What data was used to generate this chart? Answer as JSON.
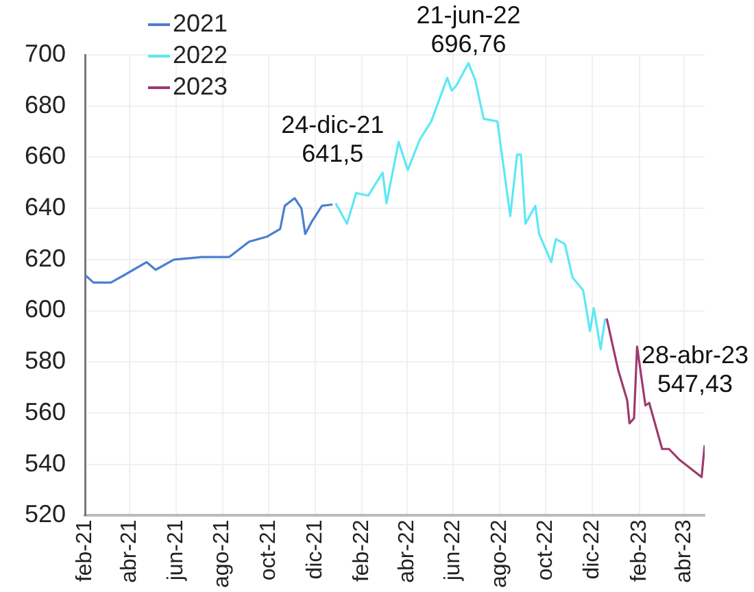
{
  "chart_data": {
    "type": "line",
    "xlim": [
      "2021-02-01",
      "2023-04-28"
    ],
    "xticks": [
      {
        "value": "2021-02-01",
        "label": "feb-21"
      },
      {
        "value": "2021-04-01",
        "label": "abr-21"
      },
      {
        "value": "2021-06-01",
        "label": "jun-21"
      },
      {
        "value": "2021-08-01",
        "label": "ago-21"
      },
      {
        "value": "2021-10-01",
        "label": "oct-21"
      },
      {
        "value": "2021-12-01",
        "label": "dic-21"
      },
      {
        "value": "2022-02-01",
        "label": "feb-22"
      },
      {
        "value": "2022-04-01",
        "label": "abr-22"
      },
      {
        "value": "2022-06-01",
        "label": "jun-22"
      },
      {
        "value": "2022-08-01",
        "label": "ago-22"
      },
      {
        "value": "2022-10-01",
        "label": "oct-22"
      },
      {
        "value": "2022-12-01",
        "label": "dic-22"
      },
      {
        "value": "2023-02-01",
        "label": "feb-23"
      },
      {
        "value": "2023-04-01",
        "label": "abr-23"
      }
    ],
    "ylim": [
      520,
      700
    ],
    "yticks": [
      520,
      540,
      560,
      580,
      600,
      620,
      640,
      660,
      680,
      700
    ],
    "grid": true,
    "legend": "top left",
    "marker": "none",
    "line_style": "solid",
    "series": [
      {
        "name": "2021",
        "color": "#4a7fd0",
        "x": [
          "2021-02-01",
          "2021-02-12",
          "2021-03-07",
          "2021-03-25",
          "2021-04-23",
          "2021-05-05",
          "2021-05-29",
          "2021-07-05",
          "2021-08-10",
          "2021-09-05",
          "2021-09-29",
          "2021-10-16",
          "2021-10-22",
          "2021-11-04",
          "2021-11-13",
          "2021-11-18",
          "2021-11-27",
          "2021-12-10",
          "2021-12-24"
        ],
        "values": [
          614,
          611,
          611,
          614,
          619,
          616,
          620,
          621,
          621,
          627,
          629,
          632,
          641,
          644,
          640,
          630,
          635,
          641,
          641.5
        ]
      },
      {
        "name": "2022",
        "color": "#5de8f5",
        "x": [
          "2021-12-28",
          "2022-01-12",
          "2022-01-24",
          "2022-02-09",
          "2022-02-28",
          "2022-03-05",
          "2022-03-21",
          "2022-04-02",
          "2022-04-18",
          "2022-05-03",
          "2022-05-24",
          "2022-05-30",
          "2022-06-05",
          "2022-06-21",
          "2022-06-30",
          "2022-07-11",
          "2022-07-29",
          "2022-08-15",
          "2022-08-24",
          "2022-08-29",
          "2022-09-04",
          "2022-09-17",
          "2022-09-22",
          "2022-10-08",
          "2022-10-14",
          "2022-10-26",
          "2022-11-05",
          "2022-11-19",
          "2022-11-28",
          "2022-12-03",
          "2022-12-12",
          "2022-12-18"
        ],
        "values": [
          642,
          634,
          646,
          645,
          654,
          642,
          666,
          655,
          667,
          674,
          691,
          686,
          688,
          696.76,
          690,
          675,
          674,
          637,
          661,
          661,
          634,
          641,
          630,
          619,
          628,
          626,
          613,
          608,
          592,
          601,
          585,
          597
        ]
      },
      {
        "name": "2023",
        "color": "#9e3a6e",
        "x": [
          "2022-12-20",
          "2023-01-04",
          "2023-01-16",
          "2023-01-19",
          "2023-01-25",
          "2023-01-29",
          "2023-02-09",
          "2023-02-14",
          "2023-03-03",
          "2023-03-12",
          "2023-03-25",
          "2023-04-24",
          "2023-04-28"
        ],
        "values": [
          597,
          577,
          565,
          556,
          558,
          586,
          563,
          564,
          546,
          546,
          542,
          535,
          547.43
        ]
      }
    ],
    "annotations": [
      {
        "text": "24-dic-21\n641,5",
        "x": "2021-12-24",
        "y": 641.5
      },
      {
        "text": "21-jun-22\n696,76",
        "x": "2022-06-21",
        "y": 696.76
      },
      {
        "text": "28-abr-23\n547,43",
        "x": "2023-04-28",
        "y": 547.43
      }
    ]
  }
}
